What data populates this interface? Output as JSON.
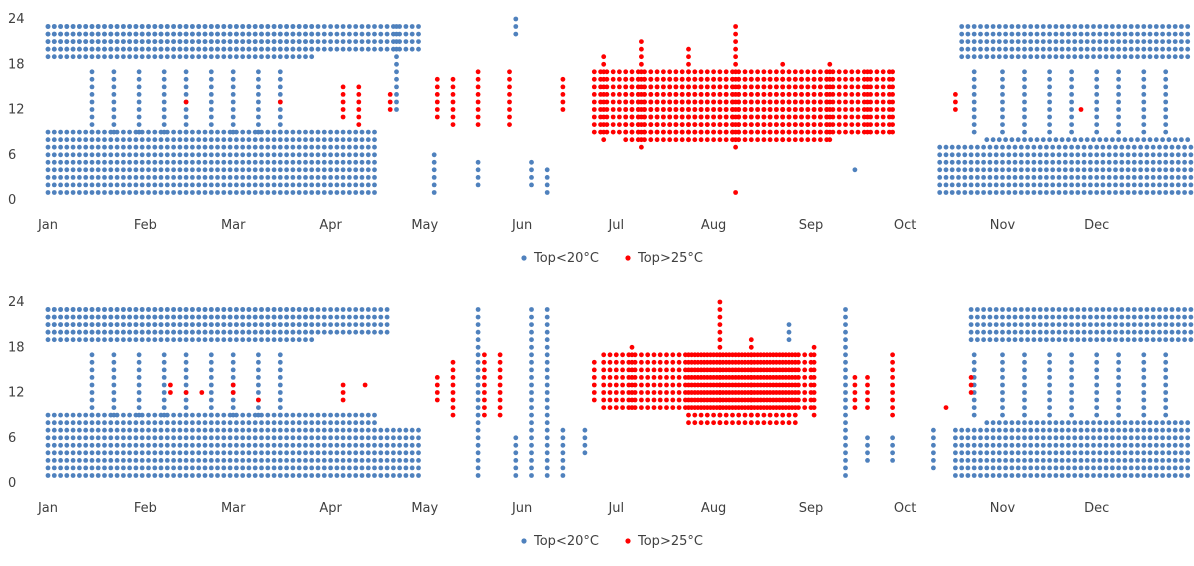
{
  "chart_data": [
    {
      "type": "scatter",
      "title": "",
      "xlabel": "",
      "ylabel": "",
      "ylim": [
        0,
        24
      ],
      "yticks": [
        "0",
        "6",
        "12",
        "18",
        "24"
      ],
      "xticks": [
        "Jan",
        "Feb",
        "Mar",
        "Apr",
        "May",
        "Jun",
        "Jul",
        "Aug",
        "Sep",
        "Oct",
        "Nov",
        "Dec"
      ],
      "x_unit": "day of year (1–365)",
      "y_unit": "hour of day (0–24)",
      "legend": [
        "Top<20°C",
        "Top>25°C"
      ],
      "legend_position": "bottom",
      "grid": false,
      "series": [
        {
          "name": "Top<20°C",
          "color": "#4f81bd",
          "blocks": [
            {
              "x": [
                1,
                105
              ],
              "y": [
                1,
                7
              ]
            },
            {
              "x": [
                1,
                85
              ],
              "y": [
                19,
                23
              ]
            },
            {
              "x": [
                1,
                120
              ],
              "y": [
                20,
                23
              ]
            },
            {
              "x": [
                1,
                105
              ],
              "y": [
                8,
                9
              ]
            },
            {
              "x": [
                285,
                365
              ],
              "y": [
                1,
                7
              ]
            },
            {
              "x": [
                292,
                365
              ],
              "y": [
                19,
                23
              ]
            },
            {
              "x": [
                300,
                365
              ],
              "y": [
                8,
                8
              ]
            }
          ],
          "sparse_columns": [
            {
              "x": 15,
              "y": [
                9,
                17
              ]
            },
            {
              "x": 22,
              "y": [
                9,
                17
              ]
            },
            {
              "x": 30,
              "y": [
                9,
                17
              ]
            },
            {
              "x": 38,
              "y": [
                9,
                17
              ]
            },
            {
              "x": 45,
              "y": [
                9,
                17
              ]
            },
            {
              "x": 53,
              "y": [
                9,
                17
              ]
            },
            {
              "x": 60,
              "y": [
                9,
                17
              ]
            },
            {
              "x": 68,
              "y": [
                9,
                17
              ]
            },
            {
              "x": 75,
              "y": [
                9,
                17
              ]
            },
            {
              "x": 112,
              "y": [
                12,
                23
              ]
            },
            {
              "x": 124,
              "y": [
                1,
                6
              ]
            },
            {
              "x": 138,
              "y": [
                2,
                5
              ]
            },
            {
              "x": 150,
              "y": [
                22,
                24
              ]
            },
            {
              "x": 155,
              "y": [
                2,
                5
              ]
            },
            {
              "x": 160,
              "y": [
                1,
                4
              ]
            },
            {
              "x": 258,
              "y": [
                4,
                4
              ]
            },
            {
              "x": 296,
              "y": [
                9,
                17
              ]
            },
            {
              "x": 305,
              "y": [
                9,
                17
              ]
            },
            {
              "x": 312,
              "y": [
                9,
                17
              ]
            },
            {
              "x": 320,
              "y": [
                9,
                17
              ]
            },
            {
              "x": 327,
              "y": [
                9,
                17
              ]
            },
            {
              "x": 335,
              "y": [
                9,
                17
              ]
            },
            {
              "x": 342,
              "y": [
                9,
                17
              ]
            },
            {
              "x": 350,
              "y": [
                9,
                17
              ]
            },
            {
              "x": 357,
              "y": [
                9,
                17
              ]
            }
          ]
        },
        {
          "name": "Top>25°C",
          "color": "#ff0000",
          "blocks": [
            {
              "x": [
                175,
                270
              ],
              "y": [
                9,
                17
              ]
            },
            {
              "x": [
                185,
                250
              ],
              "y": [
                8,
                16
              ]
            }
          ],
          "sparse_columns": [
            {
              "x": 125,
              "y": [
                11,
                16
              ]
            },
            {
              "x": 130,
              "y": [
                10,
                16
              ]
            },
            {
              "x": 138,
              "y": [
                10,
                17
              ]
            },
            {
              "x": 148,
              "y": [
                10,
                17
              ]
            },
            {
              "x": 165,
              "y": [
                12,
                16
              ]
            },
            {
              "x": 178,
              "y": [
                8,
                19
              ]
            },
            {
              "x": 190,
              "y": [
                7,
                21
              ]
            },
            {
              "x": 205,
              "y": [
                8,
                20
              ]
            },
            {
              "x": 220,
              "y": [
                7,
                23
              ]
            },
            {
              "x": 235,
              "y": [
                8,
                18
              ]
            },
            {
              "x": 250,
              "y": [
                8,
                18
              ]
            },
            {
              "x": 262,
              "y": [
                9,
                17
              ]
            },
            {
              "x": 270,
              "y": [
                9,
                17
              ]
            },
            {
              "x": 95,
              "y": [
                11,
                15
              ]
            },
            {
              "x": 100,
              "y": [
                10,
                15
              ]
            },
            {
              "x": 45,
              "y": [
                13,
                13
              ]
            },
            {
              "x": 75,
              "y": [
                13,
                13
              ]
            },
            {
              "x": 110,
              "y": [
                12,
                14
              ]
            },
            {
              "x": 220,
              "y": [
                1,
                1
              ]
            },
            {
              "x": 290,
              "y": [
                12,
                14
              ]
            },
            {
              "x": 330,
              "y": [
                12,
                12
              ]
            }
          ]
        }
      ]
    },
    {
      "type": "scatter",
      "title": "",
      "xlabel": "",
      "ylabel": "",
      "ylim": [
        0,
        24
      ],
      "yticks": [
        "0",
        "6",
        "12",
        "18",
        "24"
      ],
      "xticks": [
        "Jan",
        "Feb",
        "Mar",
        "Apr",
        "May",
        "Jun",
        "Jul",
        "Aug",
        "Sep",
        "Oct",
        "Nov",
        "Dec"
      ],
      "x_unit": "day of year (1–365)",
      "y_unit": "hour of day (0–24)",
      "legend": [
        "Top<20°C",
        "Top>25°C"
      ],
      "legend_position": "bottom",
      "grid": false,
      "series": [
        {
          "name": "Top<20°C",
          "color": "#4f81bd",
          "blocks": [
            {
              "x": [
                1,
                120
              ],
              "y": [
                1,
                7
              ]
            },
            {
              "x": [
                1,
                85
              ],
              "y": [
                19,
                23
              ]
            },
            {
              "x": [
                1,
                110
              ],
              "y": [
                20,
                23
              ]
            },
            {
              "x": [
                1,
                105
              ],
              "y": [
                8,
                9
              ]
            },
            {
              "x": [
                290,
                365
              ],
              "y": [
                1,
                7
              ]
            },
            {
              "x": [
                295,
                365
              ],
              "y": [
                19,
                23
              ]
            },
            {
              "x": [
                300,
                365
              ],
              "y": [
                8,
                8
              ]
            }
          ],
          "sparse_columns": [
            {
              "x": 15,
              "y": [
                9,
                17
              ]
            },
            {
              "x": 22,
              "y": [
                9,
                17
              ]
            },
            {
              "x": 30,
              "y": [
                9,
                17
              ]
            },
            {
              "x": 38,
              "y": [
                9,
                17
              ]
            },
            {
              "x": 45,
              "y": [
                9,
                17
              ]
            },
            {
              "x": 53,
              "y": [
                9,
                17
              ]
            },
            {
              "x": 60,
              "y": [
                9,
                17
              ]
            },
            {
              "x": 68,
              "y": [
                9,
                17
              ]
            },
            {
              "x": 75,
              "y": [
                9,
                17
              ]
            },
            {
              "x": 138,
              "y": [
                1,
                23
              ]
            },
            {
              "x": 150,
              "y": [
                1,
                6
              ]
            },
            {
              "x": 155,
              "y": [
                1,
                23
              ]
            },
            {
              "x": 160,
              "y": [
                1,
                23
              ]
            },
            {
              "x": 165,
              "y": [
                1,
                7
              ]
            },
            {
              "x": 172,
              "y": [
                4,
                7
              ]
            },
            {
              "x": 237,
              "y": [
                19,
                21
              ]
            },
            {
              "x": 255,
              "y": [
                1,
                23
              ]
            },
            {
              "x": 262,
              "y": [
                3,
                6
              ]
            },
            {
              "x": 270,
              "y": [
                3,
                6
              ]
            },
            {
              "x": 283,
              "y": [
                2,
                7
              ]
            },
            {
              "x": 296,
              "y": [
                9,
                17
              ]
            },
            {
              "x": 305,
              "y": [
                9,
                17
              ]
            },
            {
              "x": 312,
              "y": [
                9,
                17
              ]
            },
            {
              "x": 320,
              "y": [
                9,
                17
              ]
            },
            {
              "x": 327,
              "y": [
                9,
                17
              ]
            },
            {
              "x": 335,
              "y": [
                9,
                17
              ]
            },
            {
              "x": 342,
              "y": [
                9,
                17
              ]
            },
            {
              "x": 350,
              "y": [
                9,
                17
              ]
            },
            {
              "x": 357,
              "y": [
                9,
                17
              ]
            }
          ]
        },
        {
          "name": "Top>25°C",
          "color": "#ff0000",
          "blocks": [
            {
              "x": [
                178,
                245
              ],
              "y": [
                10,
                17
              ]
            },
            {
              "x": [
                205,
                240
              ],
              "y": [
                8,
                17
              ]
            }
          ],
          "sparse_columns": [
            {
              "x": 125,
              "y": [
                11,
                14
              ]
            },
            {
              "x": 130,
              "y": [
                9,
                16
              ]
            },
            {
              "x": 140,
              "y": [
                9,
                17
              ]
            },
            {
              "x": 145,
              "y": [
                9,
                17
              ]
            },
            {
              "x": 175,
              "y": [
                11,
                16
              ]
            },
            {
              "x": 187,
              "y": [
                10,
                18
              ]
            },
            {
              "x": 215,
              "y": [
                8,
                24
              ]
            },
            {
              "x": 225,
              "y": [
                8,
                19
              ]
            },
            {
              "x": 245,
              "y": [
                9,
                18
              ]
            },
            {
              "x": 258,
              "y": [
                10,
                14
              ]
            },
            {
              "x": 262,
              "y": [
                10,
                14
              ]
            },
            {
              "x": 270,
              "y": [
                9,
                17
              ]
            },
            {
              "x": 40,
              "y": [
                12,
                13
              ]
            },
            {
              "x": 45,
              "y": [
                12,
                12
              ]
            },
            {
              "x": 50,
              "y": [
                12,
                12
              ]
            },
            {
              "x": 60,
              "y": [
                12,
                13
              ]
            },
            {
              "x": 68,
              "y": [
                11,
                11
              ]
            },
            {
              "x": 95,
              "y": [
                11,
                13
              ]
            },
            {
              "x": 102,
              "y": [
                13,
                13
              ]
            },
            {
              "x": 287,
              "y": [
                10,
                10
              ]
            },
            {
              "x": 295,
              "y": [
                12,
                14
              ]
            }
          ]
        }
      ]
    }
  ]
}
